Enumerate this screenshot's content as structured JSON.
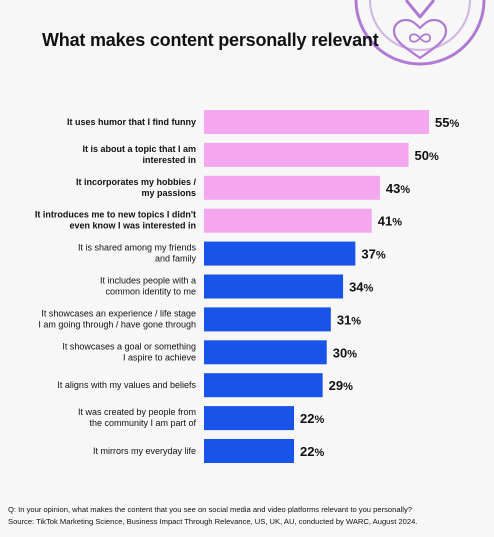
{
  "chart_data": {
    "type": "bar",
    "orientation": "horizontal",
    "title": "What makes content personally relevant",
    "unit": "%",
    "xlim": [
      0,
      60
    ],
    "grid": false,
    "categories": [
      "It uses humor that I find funny",
      "It is about a topic that I am interested in",
      "It incorporates my hobbies / my passions",
      "It introduces me to new topics I didn't even know I was interested in",
      "It is shared among my friends and family",
      "It includes people with a common identity to me",
      "It showcases an experience / life stage I am going through / have gone through",
      "It showcases a goal or something I aspire to achieve",
      "It aligns with my values and beliefs",
      "It was created by people from the community I am part of",
      "It mirrors my everyday life"
    ],
    "label_lines": [
      [
        "It uses humor that I find funny"
      ],
      [
        "It is about a topic that I am",
        "interested in"
      ],
      [
        "It incorporates my hobbies /",
        "my passions"
      ],
      [
        "It introduces me to new topics I didn't",
        "even know I was interested in"
      ],
      [
        "It is shared among my friends",
        "and family"
      ],
      [
        "It includes people with a",
        "common identity to me"
      ],
      [
        "It showcases an experience / life stage",
        "I am going through / have gone through"
      ],
      [
        "It showcases a goal or something",
        "I aspire to achieve"
      ],
      [
        "It aligns with my values and beliefs"
      ],
      [
        "It was created by people from",
        "the community I am part of"
      ],
      [
        "It mirrors my everyday life"
      ]
    ],
    "values": [
      55,
      50,
      43,
      41,
      37,
      34,
      31,
      30,
      29,
      22,
      22
    ],
    "value_labels": [
      "55",
      "50",
      "43",
      "41",
      "37",
      "34",
      "31",
      "30",
      "29",
      "22",
      "22"
    ],
    "highlighted": [
      true,
      true,
      true,
      true,
      false,
      false,
      false,
      false,
      false,
      false,
      false
    ],
    "colors": {
      "highlight": "#f4a6ee",
      "default": "#1853ea"
    }
  },
  "badge": {
    "icon": "heart-infinity-icon",
    "color": "#b07ad3"
  },
  "footer": {
    "question": "Q: In your opinion, what makes the content that you see on social media and video platforms relevant to you personally?",
    "source": "Source: TikTok Marketing Science, Business Impact Through Relevance, US, UK, AU, conducted by WARC, August 2024."
  }
}
